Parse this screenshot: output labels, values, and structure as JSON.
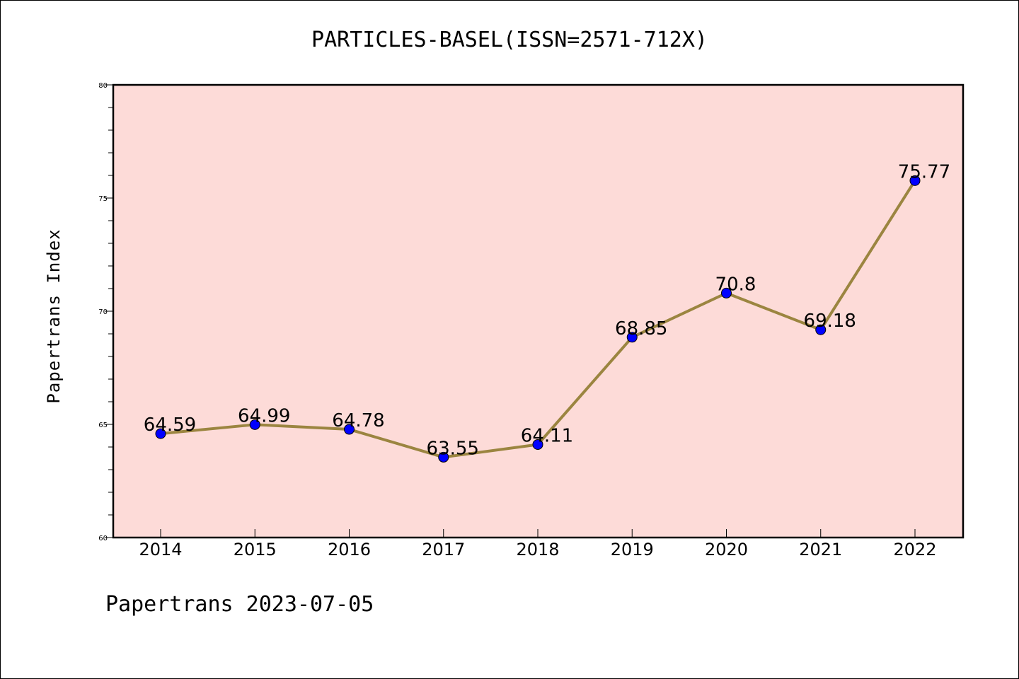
{
  "footer": "Papertrans 2023-07-05",
  "colors": {
    "plot_background": "#fddbd8",
    "line": "#9b8540",
    "marker": "#0000ff"
  },
  "chart_data": {
    "type": "line",
    "title": "PARTICLES-BASEL(ISSN=2571-712X)",
    "xlabel": "",
    "ylabel": "Papertrans Index",
    "ylim": [
      60,
      80
    ],
    "yticks": [
      60,
      65,
      70,
      75,
      80
    ],
    "grid": false,
    "x": [
      "2014",
      "2015",
      "2016",
      "2017",
      "2018",
      "2019",
      "2020",
      "2021",
      "2022"
    ],
    "values": [
      64.59,
      64.99,
      64.78,
      63.55,
      64.11,
      68.85,
      70.8,
      69.18,
      75.77
    ],
    "data_labels": [
      "64.59",
      "64.99",
      "64.78",
      "63.55",
      "64.11",
      "68.85",
      "70.8",
      "69.18",
      "75.77"
    ]
  }
}
